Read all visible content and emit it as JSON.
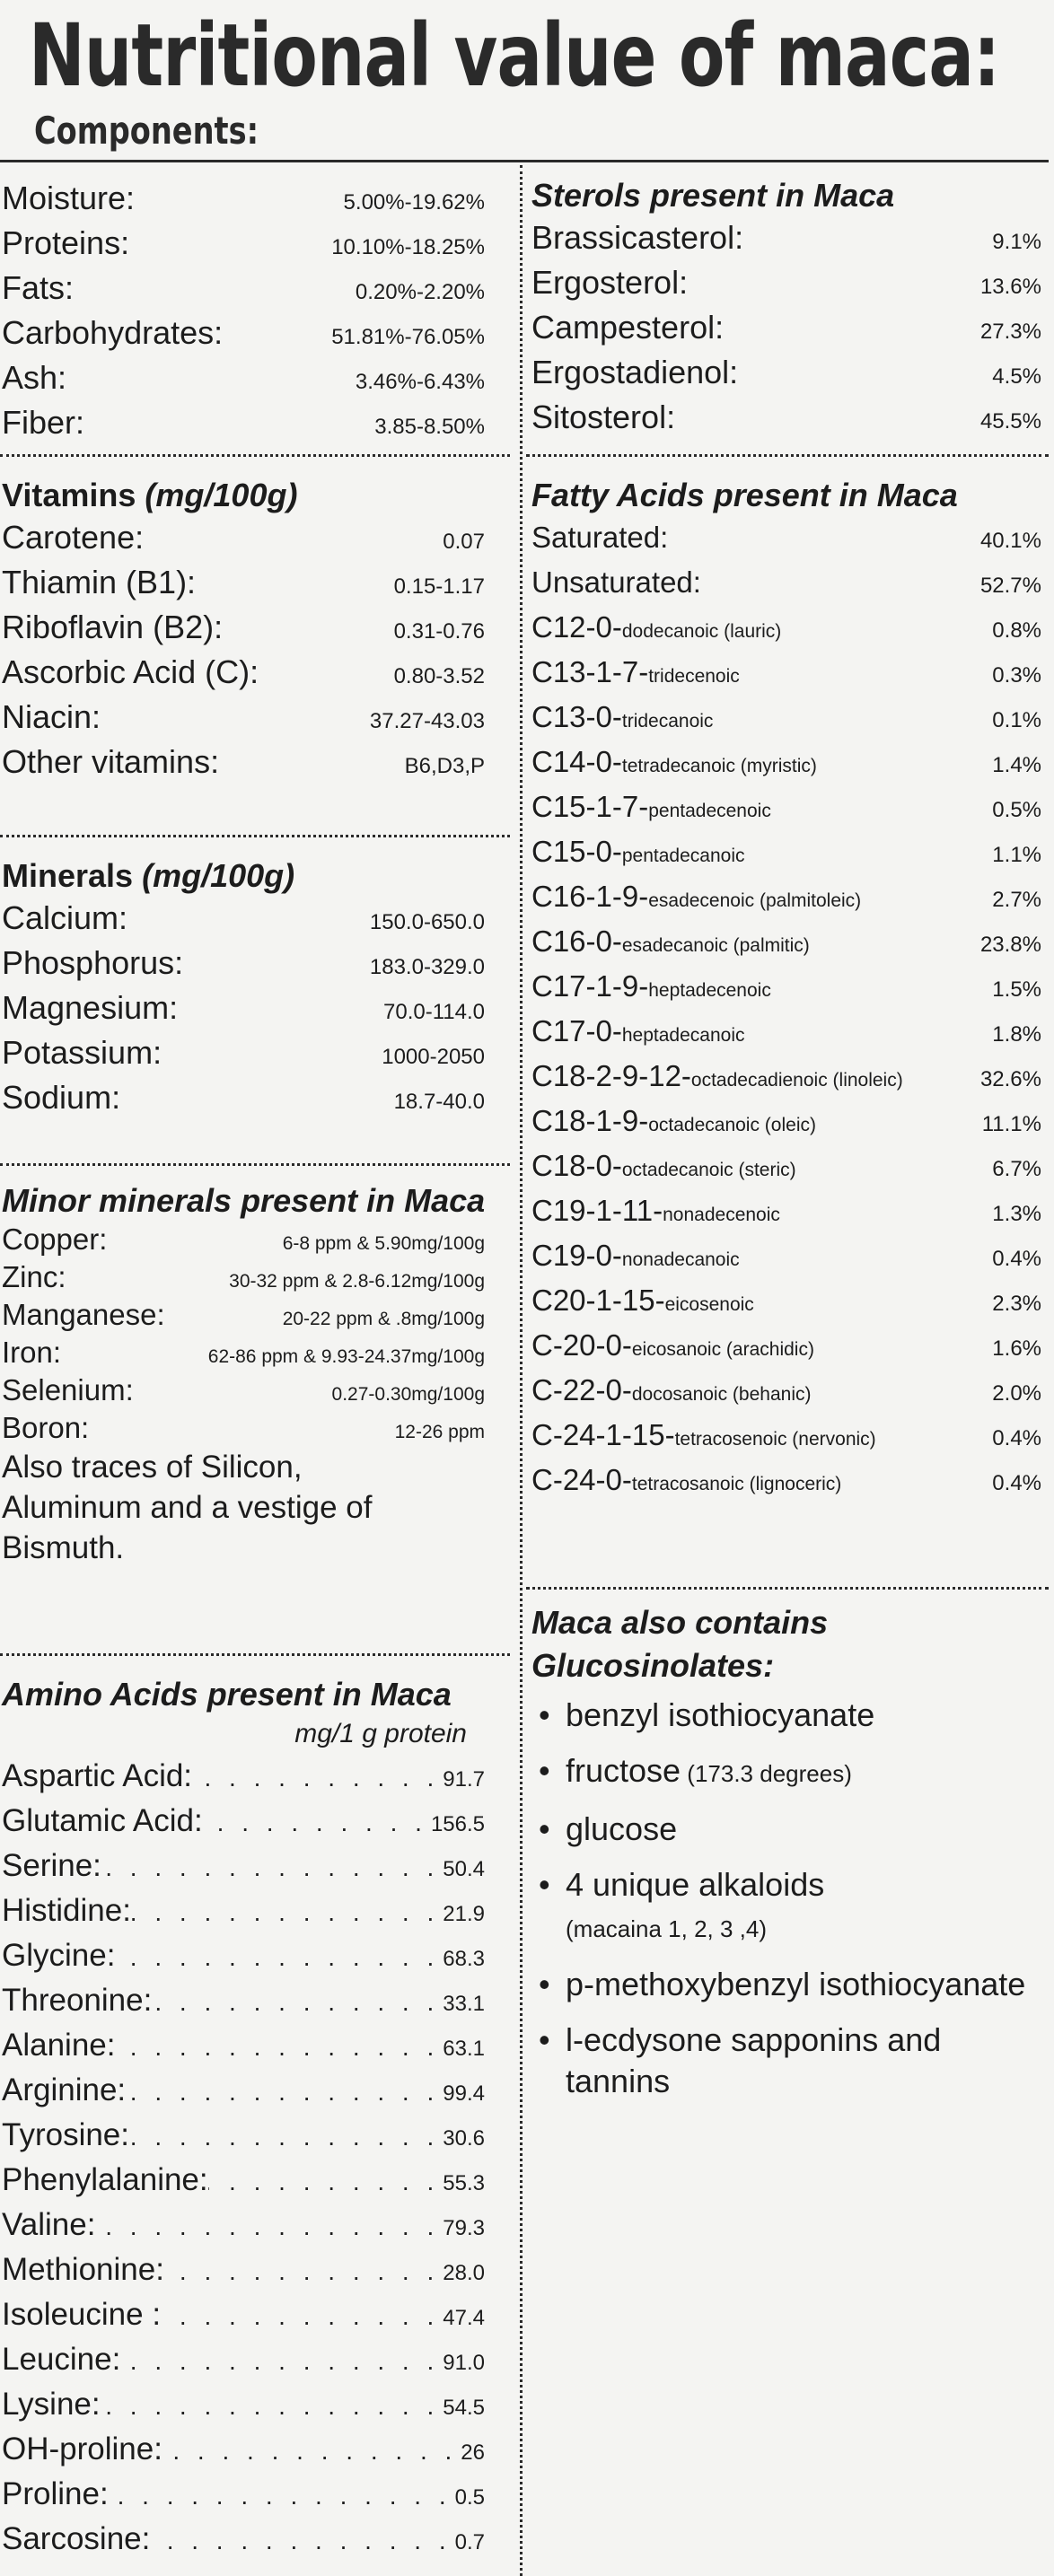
{
  "title": "Nutritional value of maca:",
  "subtitle": "Components:",
  "components": [
    {
      "name": "Moisture:",
      "value": "5.00%-19.62%"
    },
    {
      "name": "Proteins:",
      "value": "10.10%-18.25%"
    },
    {
      "name": "Fats:",
      "value": "0.20%-2.20%"
    },
    {
      "name": "Carbohydrates:",
      "value": "51.81%-76.05%"
    },
    {
      "name": "Ash:",
      "value": "3.46%-6.43%"
    },
    {
      "name": "Fiber:",
      "value": "3.85-8.50%"
    }
  ],
  "vitamins": {
    "title": "Vitamins",
    "unit": "(mg/100g)",
    "items": [
      {
        "name": "Carotene:",
        "value": "0.07"
      },
      {
        "name": "Thiamin (B1):",
        "value": "0.15-1.17"
      },
      {
        "name": "Riboflavin (B2):",
        "value": "0.31-0.76"
      },
      {
        "name": "Ascorbic Acid (C):",
        "value": "0.80-3.52"
      },
      {
        "name": "Niacin:",
        "value": "37.27-43.03"
      },
      {
        "name": "Other vitamins:",
        "value": "B6,D3,P"
      }
    ]
  },
  "minerals": {
    "title": "Minerals",
    "unit": "(mg/100g)",
    "items": [
      {
        "name": "Calcium:",
        "value": "150.0-650.0"
      },
      {
        "name": "Phosphorus:",
        "value": "183.0-329.0"
      },
      {
        "name": "Magnesium:",
        "value": "70.0-114.0"
      },
      {
        "name": "Potassium:",
        "value": "1000-2050"
      },
      {
        "name": "Sodium:",
        "value": "18.7-40.0"
      }
    ]
  },
  "minor_minerals": {
    "title": "Minor minerals present in Maca",
    "items": [
      {
        "name": "Copper:",
        "value": "6-8 ppm & 5.90mg/100g"
      },
      {
        "name": "Zinc:",
        "value": "30-32 ppm & 2.8-6.12mg/100g"
      },
      {
        "name": "Manganese:",
        "value": "20-22 ppm & .8mg/100g"
      },
      {
        "name": "Iron:",
        "value": "62-86 ppm & 9.93-24.37mg/100g"
      },
      {
        "name": "Selenium:",
        "value": "0.27-0.30mg/100g"
      },
      {
        "name": "Boron:",
        "value": "12-26 ppm"
      }
    ],
    "traces": [
      "Also traces of Silicon,",
      "Aluminum and a vestige of",
      "Bismuth."
    ]
  },
  "amino_acids": {
    "title": "Amino Acids present in Maca",
    "unit": "mg/1 g protein",
    "items": [
      {
        "name": "Aspartic Acid:",
        "value": "91.7"
      },
      {
        "name": "Glutamic Acid:",
        "value": "156.5"
      },
      {
        "name": "Serine:",
        "value": "50.4"
      },
      {
        "name": "Histidine:",
        "value": "21.9"
      },
      {
        "name": "Glycine:",
        "value": "68.3"
      },
      {
        "name": "Threonine:",
        "value": "33.1"
      },
      {
        "name": "Alanine:",
        "value": "63.1"
      },
      {
        "name": "Arginine:",
        "value": "99.4"
      },
      {
        "name": "Tyrosine:",
        "value": "30.6"
      },
      {
        "name": "Phenylalanine:",
        "value": "55.3"
      },
      {
        "name": "Valine:",
        "value": "79.3"
      },
      {
        "name": "Methionine:",
        "value": "28.0"
      },
      {
        "name": "Isoleucine :",
        "value": "47.4"
      },
      {
        "name": "Leucine:",
        "value": "91.0"
      },
      {
        "name": "Lysine:",
        "value": "54.5"
      },
      {
        "name": "OH-proline:",
        "value": "26"
      },
      {
        "name": "Proline:",
        "value": "0.5"
      },
      {
        "name": "Sarcosine:",
        "value": "0.7"
      }
    ]
  },
  "sterols": {
    "title": "Sterols present in Maca",
    "items": [
      {
        "name": "Brassicasterol:",
        "value": "9.1%"
      },
      {
        "name": "Ergosterol:",
        "value": "13.6%"
      },
      {
        "name": "Campesterol:",
        "value": "27.3%"
      },
      {
        "name": "Ergostadienol:",
        "value": "4.5%"
      },
      {
        "name": "Sitosterol:",
        "value": "45.5%"
      }
    ]
  },
  "fatty_acids": {
    "title": "Fatty Acids present in Maca",
    "items": [
      {
        "code": "Saturated:",
        "desc": "",
        "value": "40.1%"
      },
      {
        "code": "Unsaturated:",
        "desc": "",
        "value": "52.7%"
      },
      {
        "code": "C12-0-",
        "desc": "dodecanoic (lauric)",
        "value": "0.8%"
      },
      {
        "code": "C13-1-7-",
        "desc": "tridecenoic",
        "value": "0.3%"
      },
      {
        "code": "C13-0-",
        "desc": "tridecanoic",
        "value": "0.1%"
      },
      {
        "code": "C14-0-",
        "desc": "tetradecanoic (myristic)",
        "value": "1.4%"
      },
      {
        "code": "C15-1-7-",
        "desc": "pentadecenoic",
        "value": "0.5%"
      },
      {
        "code": "C15-0-",
        "desc": "pentadecanoic",
        "value": "1.1%"
      },
      {
        "code": "C16-1-9-",
        "desc": "esadecenoic (palmitoleic)",
        "value": "2.7%"
      },
      {
        "code": "C16-0-",
        "desc": "esadecanoic (palmitic)",
        "value": "23.8%"
      },
      {
        "code": "C17-1-9-",
        "desc": "heptadecenoic",
        "value": "1.5%"
      },
      {
        "code": "C17-0-",
        "desc": "heptadecanoic",
        "value": "1.8%"
      },
      {
        "code": "C18-2-9-12-",
        "desc": "octadecadienoic (linoleic)",
        "value": "32.6%"
      },
      {
        "code": "C18-1-9-",
        "desc": "octadecanoic (oleic)",
        "value": "11.1%"
      },
      {
        "code": "C18-0-",
        "desc": "octadecanoic (steric)",
        "value": "6.7%"
      },
      {
        "code": "C19-1-11-",
        "desc": "nonadecenoic",
        "value": "1.3%"
      },
      {
        "code": "C19-0-",
        "desc": "nonadecanoic",
        "value": "0.4%"
      },
      {
        "code": "C20-1-15-",
        "desc": "eicosenoic",
        "value": "2.3%"
      },
      {
        "code": "C-20-0-",
        "desc": "eicosanoic (arachidic)",
        "value": "1.6%"
      },
      {
        "code": "C-22-0-",
        "desc": "docosanoic (behanic)",
        "value": "2.0%"
      },
      {
        "code": "C-24-1-15-",
        "desc": "tetracosenoic (nervonic)",
        "value": "0.4%"
      },
      {
        "code": "C-24-0-",
        "desc": "tetracosanoic (lignoceric)",
        "value": "0.4%"
      }
    ]
  },
  "glucosinolates": {
    "title_line1": "Maca also contains",
    "title_line2": "Glucosinolates:",
    "items": [
      {
        "text": "benzyl isothiocyanate",
        "note": ""
      },
      {
        "text": "fructose",
        "note": " (173.3 degrees)"
      },
      {
        "text": "glucose",
        "note": ""
      },
      {
        "text": "4 unique alkaloids",
        "note": "(macaina 1, 2, 3 ,4)",
        "note_block": true
      },
      {
        "text": "p-methoxybenzyl isothiocyanate",
        "note": ""
      },
      {
        "text": "l-ecdysone sapponins and tannins",
        "note": ""
      }
    ]
  }
}
